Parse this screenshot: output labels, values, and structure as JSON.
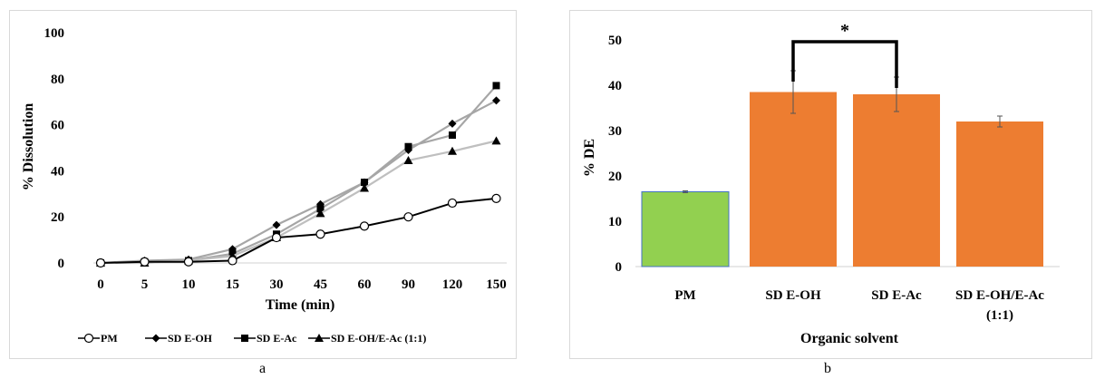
{
  "chart_data": [
    {
      "id": "a",
      "type": "line",
      "panel_label": "a",
      "categories": [
        "0",
        "5",
        "10",
        "15",
        "30",
        "45",
        "60",
        "90",
        "120",
        "150"
      ],
      "xlabel": "Time (min)",
      "ylabel": "% Dissolution",
      "ylim": [
        0,
        100
      ],
      "yticks": [
        0,
        20,
        40,
        60,
        80,
        100
      ],
      "grid": false,
      "legend_position": "bottom",
      "series": [
        {
          "name": "PM",
          "marker": "circle-open",
          "color": "#000000",
          "values": [
            0,
            0.5,
            0.5,
            1,
            11,
            12.5,
            16,
            20,
            26,
            28
          ]
        },
        {
          "name": "SD E-OH",
          "marker": "diamond",
          "color": "#a6a6a6",
          "values": [
            0,
            1,
            1.5,
            6,
            16.5,
            25.5,
            35,
            49,
            60.5,
            70.5
          ]
        },
        {
          "name": "SD E-Ac",
          "marker": "square",
          "color": "#a6a6a6",
          "values": [
            0,
            0.5,
            1,
            4,
            12.5,
            23.5,
            35,
            50.5,
            55.5,
            77
          ]
        },
        {
          "name": "SD E-OH/E-Ac (1:1)",
          "marker": "triangle",
          "color": "#bfbfbf",
          "values": [
            0,
            0,
            1,
            3,
            11,
            21.5,
            32.5,
            44.5,
            48.5,
            53
          ]
        }
      ]
    },
    {
      "id": "b",
      "type": "bar",
      "panel_label": "b",
      "categories": [
        "PM",
        "SD E-OH",
        "SD E-Ac",
        "SD E-OH/E-Ac (1:1)"
      ],
      "values": [
        16.5,
        38.5,
        38,
        32
      ],
      "errors": [
        0.2,
        4.7,
        3.8,
        1.2
      ],
      "bar_colors": [
        "#92d050",
        "#ed7d31",
        "#ed7d31",
        "#ed7d31"
      ],
      "xlabel": "Organic solvent",
      "ylabel": "% DE",
      "ylim": [
        0,
        50
      ],
      "yticks": [
        0,
        10,
        20,
        30,
        40,
        50
      ],
      "grid": false,
      "significance": {
        "between": [
          "SD E-OH",
          "SD E-Ac"
        ],
        "label": "*"
      }
    }
  ]
}
